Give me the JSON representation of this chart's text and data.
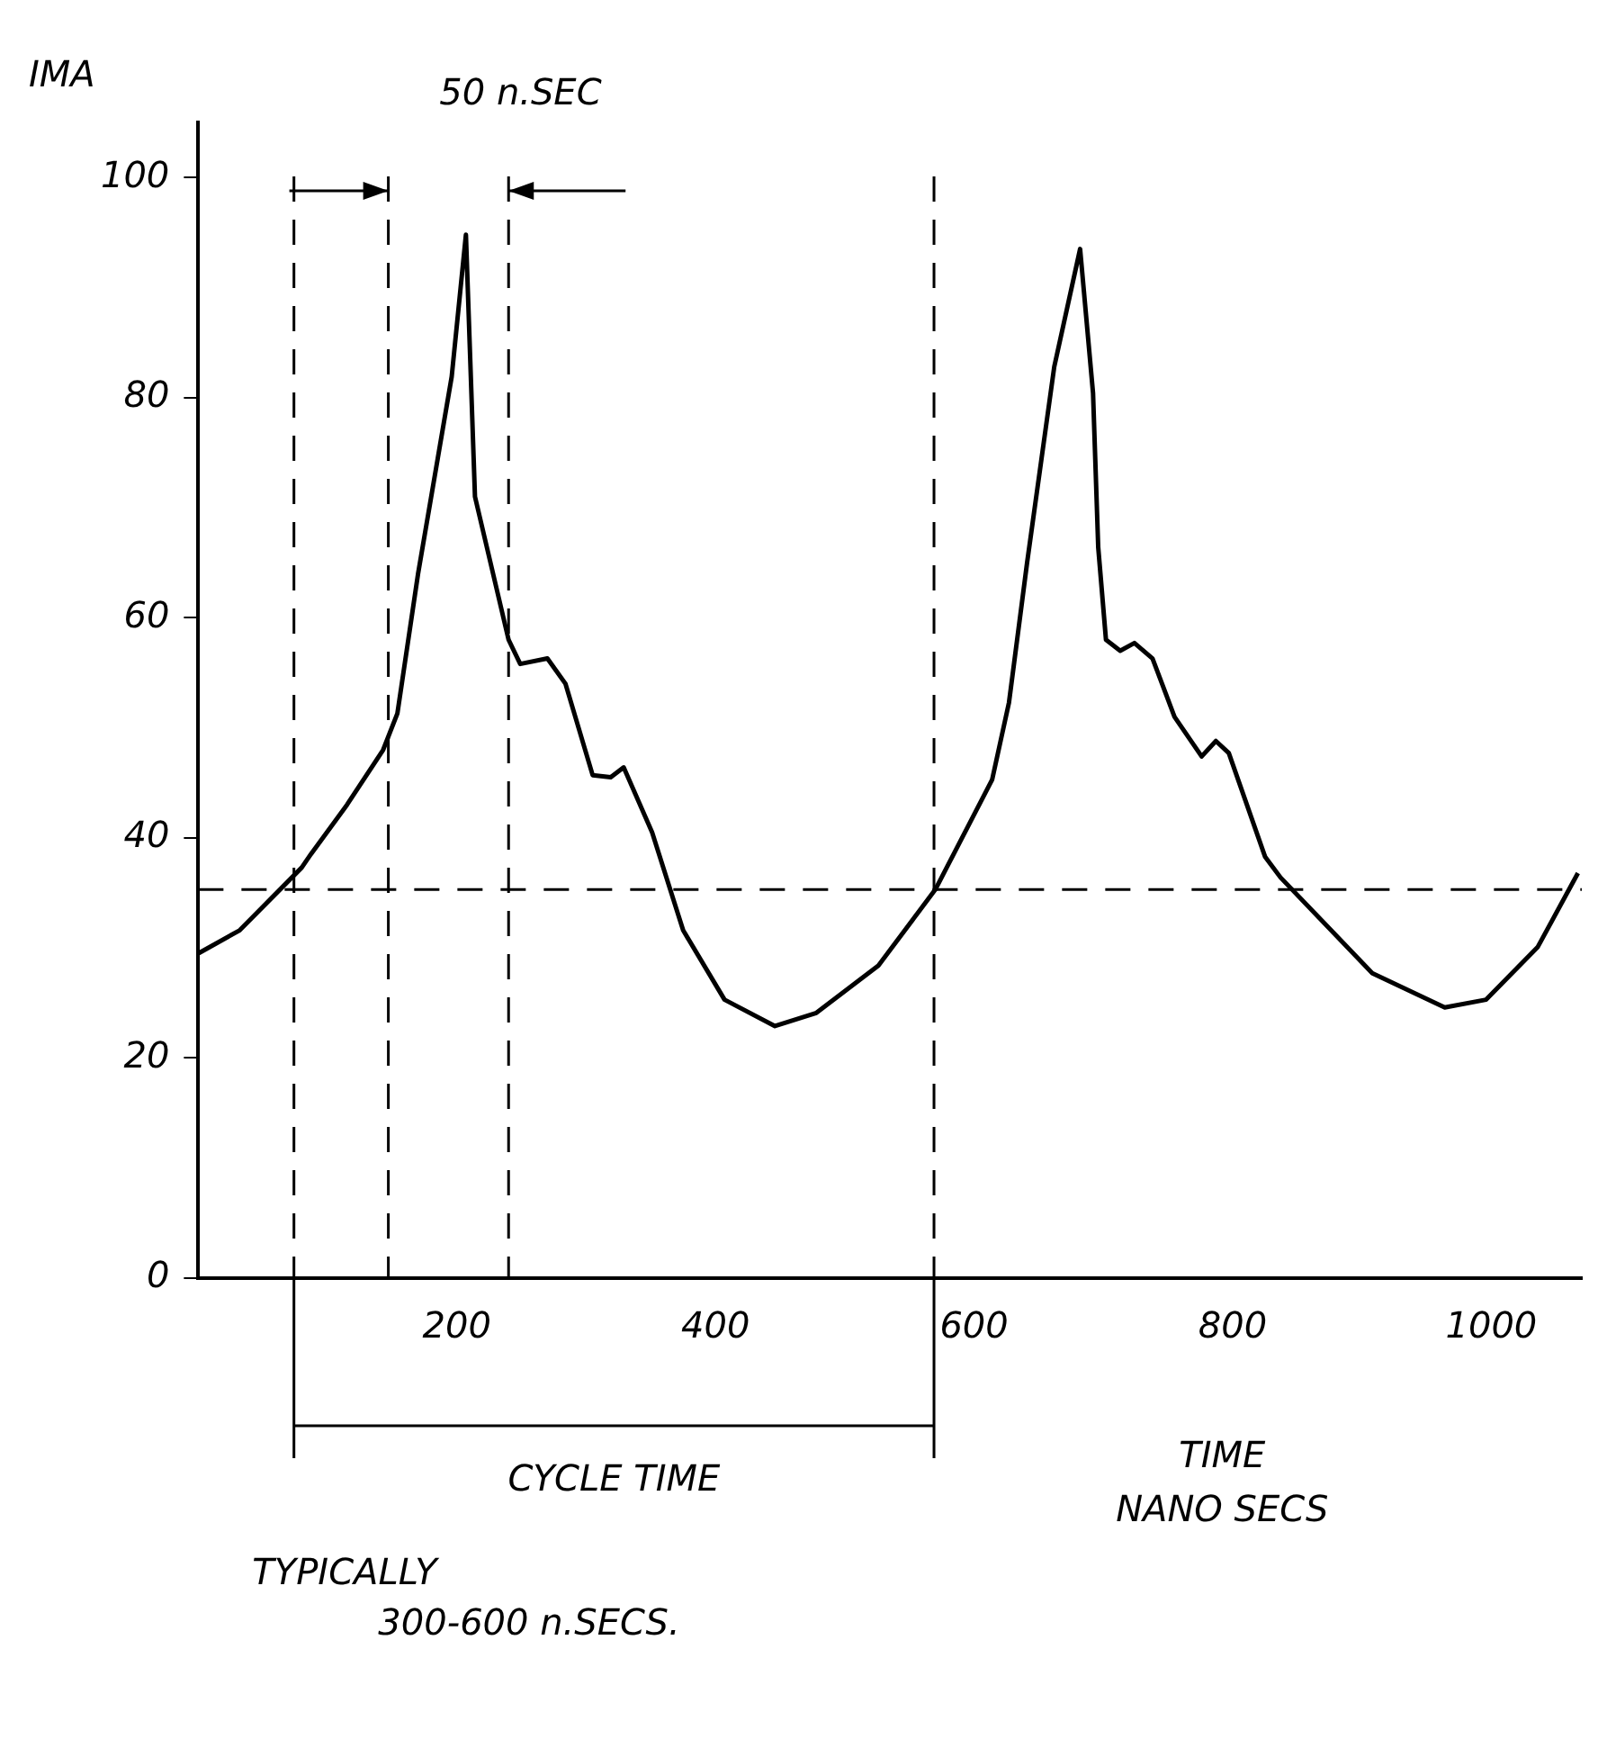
{
  "chart_data": {
    "type": "line",
    "ylabel": "IMA",
    "xlabel": "TIME\nNANO SECS",
    "x": [
      0,
      32,
      80,
      87,
      115,
      143,
      154,
      170,
      196,
      207,
      214,
      240,
      249,
      270,
      284,
      305,
      319,
      329,
      351,
      375,
      407,
      446,
      478,
      526,
      570,
      614,
      627,
      641,
      662,
      682,
      692,
      696,
      702,
      713,
      724,
      738,
      755,
      776,
      787,
      797,
      825,
      837,
      908,
      964,
      996,
      1036,
      1067
    ],
    "series": [
      {
        "color": "#000000",
        "values": [
          29.5,
          31.6,
          37.3,
          38.5,
          43,
          48,
          51.3,
          64,
          81.9,
          94.8,
          71,
          58,
          55.8,
          56.3,
          54,
          45.7,
          45.5,
          46.4,
          40.5,
          31.6,
          25.3,
          22.9,
          24.1,
          28.4,
          35.3,
          45.3,
          52.3,
          65,
          82.8,
          93.5,
          80.4,
          66.4,
          58,
          57,
          57.7,
          56.3,
          51,
          47.4,
          48.8,
          47.7,
          38.3,
          36.4,
          27.7,
          24.6,
          25.3,
          30.1,
          36.8
        ]
      }
    ],
    "xlim": [
      0,
      1070
    ],
    "xticks": [
      200,
      400,
      600,
      800,
      1000
    ],
    "ylim": [
      0,
      105
    ],
    "yticks": [
      0,
      20,
      40,
      60,
      80,
      100
    ],
    "grid": false,
    "legend": false,
    "marker": "none",
    "line_style": "solid",
    "ref_lines": [
      {
        "axis": "y",
        "value": 35.3,
        "line_style": "dashed",
        "color": "#000000"
      },
      {
        "axis": "x",
        "value": 74,
        "line_style": "dashed",
        "color": "#000000"
      },
      {
        "axis": "x",
        "value": 569,
        "line_style": "dashed",
        "color": "#000000"
      },
      {
        "axis": "x",
        "value": 147,
        "line_style": "dashed",
        "color": "#000000"
      },
      {
        "axis": "x",
        "value": 240,
        "line_style": "dashed",
        "color": "#000000"
      }
    ],
    "annotations": [
      "50 n.SEC",
      "CYCLE TIME",
      "TYPICALLY",
      "300-600 n.SECS."
    ]
  }
}
